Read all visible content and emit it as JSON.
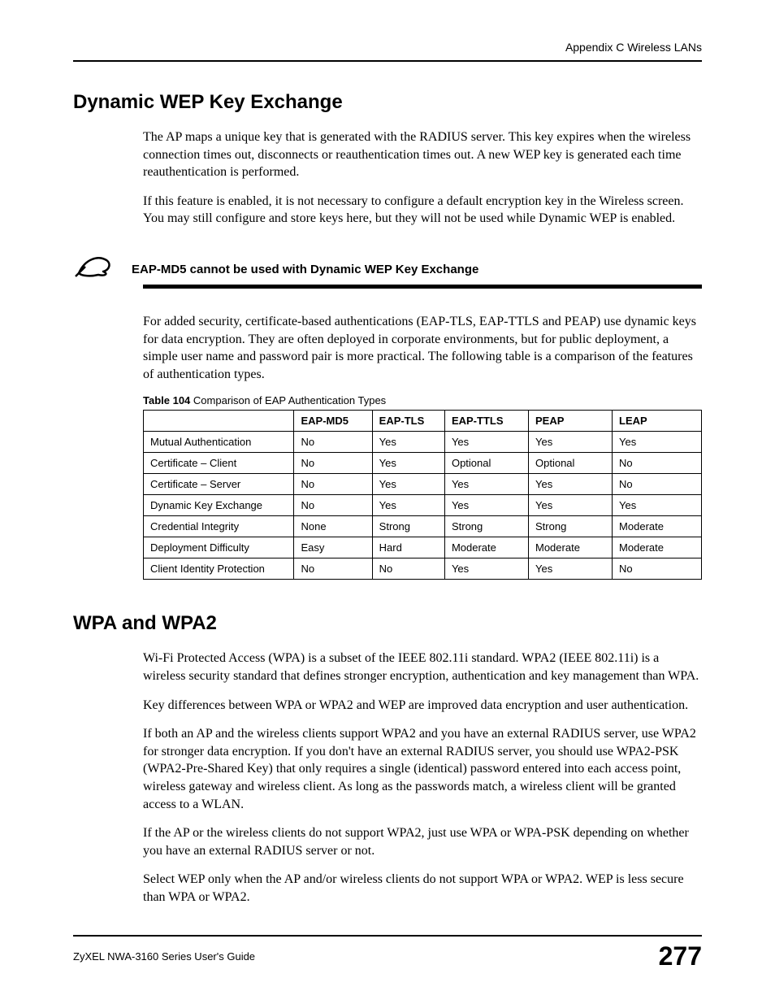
{
  "header": {
    "appendix": "Appendix C Wireless LANs"
  },
  "section1": {
    "title": "Dynamic WEP Key Exchange",
    "p1": "The AP maps a unique key that is generated with the RADIUS server. This key expires when the wireless connection times out, disconnects or reauthentication times out. A new WEP key is generated each time reauthentication is performed.",
    "p2": "If this feature is enabled, it is not necessary to configure a default encryption key in the Wireless screen. You may still configure and store keys here, but they will not be used while Dynamic WEP is enabled.",
    "note": "EAP-MD5 cannot be used with Dynamic WEP Key Exchange",
    "p3": "For added security, certificate-based authentications (EAP-TLS, EAP-TTLS and PEAP) use dynamic keys for data encryption. They are often deployed in corporate environments, but for public deployment, a simple user name and password pair is more practical. The following table is a comparison of the features of authentication types."
  },
  "table": {
    "caption_label": "Table 104",
    "caption_text": "   Comparison of EAP Authentication Types",
    "columns": [
      "",
      "EAP-MD5",
      "EAP-TLS",
      "EAP-TTLS",
      "PEAP",
      "LEAP"
    ],
    "col_widths": [
      "27%",
      "14%",
      "13%",
      "15%",
      "15%",
      "16%"
    ],
    "rows": [
      [
        "Mutual Authentication",
        "No",
        "Yes",
        "Yes",
        "Yes",
        "Yes"
      ],
      [
        "Certificate – Client",
        "No",
        "Yes",
        "Optional",
        "Optional",
        "No"
      ],
      [
        "Certificate – Server",
        "No",
        "Yes",
        "Yes",
        "Yes",
        "No"
      ],
      [
        "Dynamic Key Exchange",
        "No",
        "Yes",
        "Yes",
        "Yes",
        "Yes"
      ],
      [
        "Credential Integrity",
        "None",
        "Strong",
        "Strong",
        "Strong",
        "Moderate"
      ],
      [
        "Deployment Difficulty",
        "Easy",
        "Hard",
        "Moderate",
        "Moderate",
        "Moderate"
      ],
      [
        "Client Identity Protection",
        "No",
        "No",
        "Yes",
        "Yes",
        "No"
      ]
    ]
  },
  "section2": {
    "title": "WPA and WPA2",
    "p1": "Wi-Fi Protected Access (WPA) is a subset of the IEEE 802.11i standard. WPA2 (IEEE 802.11i) is a wireless security standard that defines stronger encryption, authentication and key management than WPA.",
    "p2": "Key differences between WPA or WPA2 and WEP are improved data encryption and user authentication.",
    "p3": "If both an AP and the wireless clients support WPA2 and you have an external RADIUS server, use WPA2 for stronger data encryption. If you don't have an external RADIUS server, you should use WPA2-PSK (WPA2-Pre-Shared Key) that only requires a single (identical) password entered into each access point, wireless gateway and wireless client. As long as the passwords match, a wireless client will be granted access to a WLAN.",
    "p4": "If the AP or the wireless clients do not support WPA2, just use WPA or WPA-PSK depending on whether you have an external RADIUS server or not.",
    "p5": "Select WEP only when the AP and/or wireless clients do not support WPA or WPA2. WEP is less secure than WPA or WPA2."
  },
  "footer": {
    "guide": "ZyXEL NWA-3160 Series User's Guide",
    "page": "277"
  }
}
